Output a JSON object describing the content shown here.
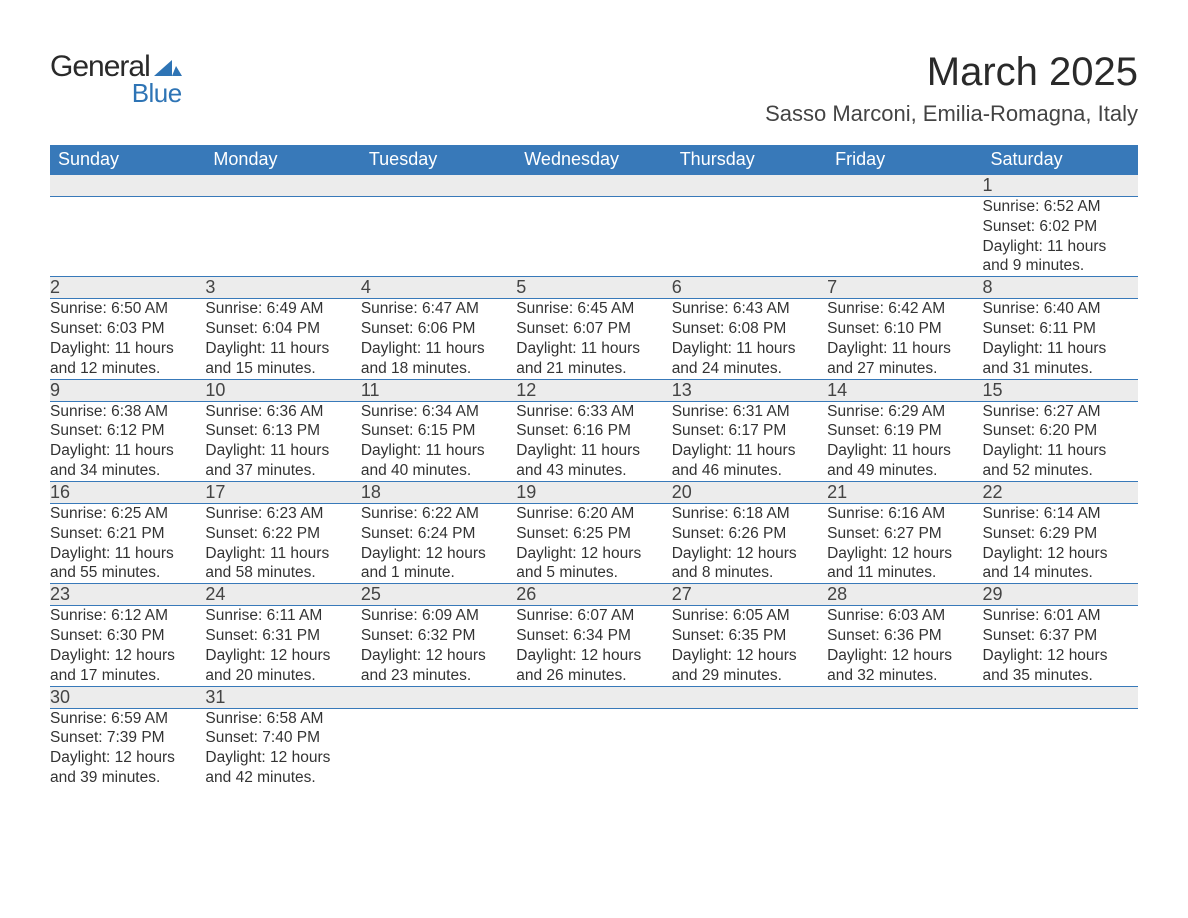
{
  "brand": {
    "general": "General",
    "blue": "Blue",
    "mark_color": "#2e74b5"
  },
  "title": "March 2025",
  "location": "Sasso Marconi, Emilia-Romagna, Italy",
  "colors": {
    "header_bg": "#3879b9",
    "header_fg": "#ffffff",
    "daynum_bg": "#ececec",
    "row_divider": "#3879b9",
    "text": "#333333",
    "page_bg": "#ffffff"
  },
  "fonts": {
    "title_pt": 40,
    "location_pt": 22,
    "th_pt": 18,
    "daynum_pt": 18,
    "body_pt": 15.5
  },
  "weekdays": [
    "Sunday",
    "Monday",
    "Tuesday",
    "Wednesday",
    "Thursday",
    "Friday",
    "Saturday"
  ],
  "weeks": [
    {
      "nums": [
        "",
        "",
        "",
        "",
        "",
        "",
        "1"
      ],
      "cells": [
        null,
        null,
        null,
        null,
        null,
        null,
        {
          "sr": "Sunrise: 6:52 AM",
          "ss": "Sunset: 6:02 PM",
          "d1": "Daylight: 11 hours",
          "d2": "and 9 minutes."
        }
      ]
    },
    {
      "nums": [
        "2",
        "3",
        "4",
        "5",
        "6",
        "7",
        "8"
      ],
      "cells": [
        {
          "sr": "Sunrise: 6:50 AM",
          "ss": "Sunset: 6:03 PM",
          "d1": "Daylight: 11 hours",
          "d2": "and 12 minutes."
        },
        {
          "sr": "Sunrise: 6:49 AM",
          "ss": "Sunset: 6:04 PM",
          "d1": "Daylight: 11 hours",
          "d2": "and 15 minutes."
        },
        {
          "sr": "Sunrise: 6:47 AM",
          "ss": "Sunset: 6:06 PM",
          "d1": "Daylight: 11 hours",
          "d2": "and 18 minutes."
        },
        {
          "sr": "Sunrise: 6:45 AM",
          "ss": "Sunset: 6:07 PM",
          "d1": "Daylight: 11 hours",
          "d2": "and 21 minutes."
        },
        {
          "sr": "Sunrise: 6:43 AM",
          "ss": "Sunset: 6:08 PM",
          "d1": "Daylight: 11 hours",
          "d2": "and 24 minutes."
        },
        {
          "sr": "Sunrise: 6:42 AM",
          "ss": "Sunset: 6:10 PM",
          "d1": "Daylight: 11 hours",
          "d2": "and 27 minutes."
        },
        {
          "sr": "Sunrise: 6:40 AM",
          "ss": "Sunset: 6:11 PM",
          "d1": "Daylight: 11 hours",
          "d2": "and 31 minutes."
        }
      ]
    },
    {
      "nums": [
        "9",
        "10",
        "11",
        "12",
        "13",
        "14",
        "15"
      ],
      "cells": [
        {
          "sr": "Sunrise: 6:38 AM",
          "ss": "Sunset: 6:12 PM",
          "d1": "Daylight: 11 hours",
          "d2": "and 34 minutes."
        },
        {
          "sr": "Sunrise: 6:36 AM",
          "ss": "Sunset: 6:13 PM",
          "d1": "Daylight: 11 hours",
          "d2": "and 37 minutes."
        },
        {
          "sr": "Sunrise: 6:34 AM",
          "ss": "Sunset: 6:15 PM",
          "d1": "Daylight: 11 hours",
          "d2": "and 40 minutes."
        },
        {
          "sr": "Sunrise: 6:33 AM",
          "ss": "Sunset: 6:16 PM",
          "d1": "Daylight: 11 hours",
          "d2": "and 43 minutes."
        },
        {
          "sr": "Sunrise: 6:31 AM",
          "ss": "Sunset: 6:17 PM",
          "d1": "Daylight: 11 hours",
          "d2": "and 46 minutes."
        },
        {
          "sr": "Sunrise: 6:29 AM",
          "ss": "Sunset: 6:19 PM",
          "d1": "Daylight: 11 hours",
          "d2": "and 49 minutes."
        },
        {
          "sr": "Sunrise: 6:27 AM",
          "ss": "Sunset: 6:20 PM",
          "d1": "Daylight: 11 hours",
          "d2": "and 52 minutes."
        }
      ]
    },
    {
      "nums": [
        "16",
        "17",
        "18",
        "19",
        "20",
        "21",
        "22"
      ],
      "cells": [
        {
          "sr": "Sunrise: 6:25 AM",
          "ss": "Sunset: 6:21 PM",
          "d1": "Daylight: 11 hours",
          "d2": "and 55 minutes."
        },
        {
          "sr": "Sunrise: 6:23 AM",
          "ss": "Sunset: 6:22 PM",
          "d1": "Daylight: 11 hours",
          "d2": "and 58 minutes."
        },
        {
          "sr": "Sunrise: 6:22 AM",
          "ss": "Sunset: 6:24 PM",
          "d1": "Daylight: 12 hours",
          "d2": "and 1 minute."
        },
        {
          "sr": "Sunrise: 6:20 AM",
          "ss": "Sunset: 6:25 PM",
          "d1": "Daylight: 12 hours",
          "d2": "and 5 minutes."
        },
        {
          "sr": "Sunrise: 6:18 AM",
          "ss": "Sunset: 6:26 PM",
          "d1": "Daylight: 12 hours",
          "d2": "and 8 minutes."
        },
        {
          "sr": "Sunrise: 6:16 AM",
          "ss": "Sunset: 6:27 PM",
          "d1": "Daylight: 12 hours",
          "d2": "and 11 minutes."
        },
        {
          "sr": "Sunrise: 6:14 AM",
          "ss": "Sunset: 6:29 PM",
          "d1": "Daylight: 12 hours",
          "d2": "and 14 minutes."
        }
      ]
    },
    {
      "nums": [
        "23",
        "24",
        "25",
        "26",
        "27",
        "28",
        "29"
      ],
      "cells": [
        {
          "sr": "Sunrise: 6:12 AM",
          "ss": "Sunset: 6:30 PM",
          "d1": "Daylight: 12 hours",
          "d2": "and 17 minutes."
        },
        {
          "sr": "Sunrise: 6:11 AM",
          "ss": "Sunset: 6:31 PM",
          "d1": "Daylight: 12 hours",
          "d2": "and 20 minutes."
        },
        {
          "sr": "Sunrise: 6:09 AM",
          "ss": "Sunset: 6:32 PM",
          "d1": "Daylight: 12 hours",
          "d2": "and 23 minutes."
        },
        {
          "sr": "Sunrise: 6:07 AM",
          "ss": "Sunset: 6:34 PM",
          "d1": "Daylight: 12 hours",
          "d2": "and 26 minutes."
        },
        {
          "sr": "Sunrise: 6:05 AM",
          "ss": "Sunset: 6:35 PM",
          "d1": "Daylight: 12 hours",
          "d2": "and 29 minutes."
        },
        {
          "sr": "Sunrise: 6:03 AM",
          "ss": "Sunset: 6:36 PM",
          "d1": "Daylight: 12 hours",
          "d2": "and 32 minutes."
        },
        {
          "sr": "Sunrise: 6:01 AM",
          "ss": "Sunset: 6:37 PM",
          "d1": "Daylight: 12 hours",
          "d2": "and 35 minutes."
        }
      ]
    },
    {
      "nums": [
        "30",
        "31",
        "",
        "",
        "",
        "",
        ""
      ],
      "cells": [
        {
          "sr": "Sunrise: 6:59 AM",
          "ss": "Sunset: 7:39 PM",
          "d1": "Daylight: 12 hours",
          "d2": "and 39 minutes."
        },
        {
          "sr": "Sunrise: 6:58 AM",
          "ss": "Sunset: 7:40 PM",
          "d1": "Daylight: 12 hours",
          "d2": "and 42 minutes."
        },
        null,
        null,
        null,
        null,
        null
      ]
    }
  ]
}
